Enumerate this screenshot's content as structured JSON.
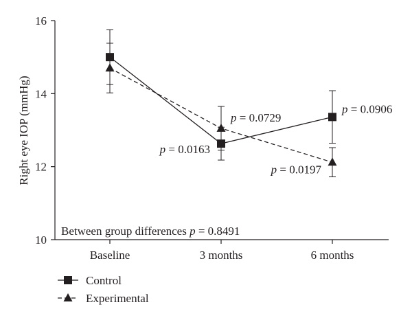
{
  "chart_data": {
    "type": "line",
    "ylabel": "Right eye IOP (mmHg)",
    "categories": [
      "Baseline",
      "3 months",
      "6 months"
    ],
    "ylim": [
      10,
      16
    ],
    "yticks": [
      "10",
      "12",
      "14",
      "16"
    ],
    "grid": false,
    "legend_placement": "bottom-left",
    "series": [
      {
        "name": "Control",
        "marker": "square",
        "line_style": "solid",
        "values": [
          15.0,
          12.63,
          13.36
        ],
        "errors": [
          0.75,
          0.45,
          0.72
        ]
      },
      {
        "name": "Experimental",
        "marker": "triangle",
        "line_style": "dashed",
        "values": [
          14.7,
          13.05,
          12.12
        ],
        "errors": [
          0.68,
          0.6,
          0.4
        ]
      }
    ],
    "annotations": [
      {
        "prefix": "p",
        "text": " = 0.0729",
        "category": "3 months",
        "series": "Experimental"
      },
      {
        "prefix": "p",
        "text": " = 0.0163",
        "category": "3 months",
        "series": "Control"
      },
      {
        "prefix": "p",
        "text": " = 0.0906",
        "category": "6 months",
        "series": "Control"
      },
      {
        "prefix": "p",
        "text": " = 0.0197",
        "category": "6 months",
        "series": "Experimental"
      }
    ],
    "footnote": {
      "prefix": "Between group differences ",
      "p": "p",
      "rest": " = 0.8491"
    }
  }
}
